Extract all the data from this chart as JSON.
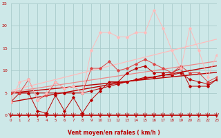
{
  "x": [
    0,
    1,
    2,
    3,
    4,
    5,
    6,
    7,
    8,
    9,
    10,
    11,
    12,
    13,
    14,
    15,
    16,
    17,
    18,
    19,
    20,
    21,
    22,
    23
  ],
  "trend_bottom": [
    3.0,
    3.35,
    3.7,
    4.05,
    4.4,
    4.75,
    5.1,
    5.45,
    5.8,
    6.15,
    6.5,
    6.85,
    7.2,
    7.55,
    7.9,
    8.25,
    8.6,
    8.95,
    9.3,
    9.65,
    10.0,
    10.35,
    10.7,
    11.05
  ],
  "trend_mid1": [
    5.0,
    5.2,
    5.4,
    5.6,
    5.8,
    6.0,
    6.2,
    6.4,
    6.6,
    6.8,
    7.0,
    7.2,
    7.4,
    7.6,
    7.8,
    8.0,
    8.2,
    8.4,
    8.6,
    8.8,
    9.0,
    9.2,
    9.4,
    9.6
  ],
  "trend_mid2": [
    5.2,
    5.5,
    5.8,
    6.1,
    6.4,
    6.7,
    7.0,
    7.3,
    7.6,
    7.9,
    8.2,
    8.5,
    8.8,
    9.1,
    9.4,
    9.7,
    10.0,
    10.3,
    10.6,
    10.9,
    11.2,
    11.5,
    11.8,
    12.1
  ],
  "trend_top": [
    5.5,
    6.0,
    6.5,
    7.0,
    7.5,
    8.0,
    8.5,
    9.0,
    9.5,
    10.0,
    10.5,
    11.0,
    11.5,
    12.0,
    12.5,
    13.0,
    13.5,
    14.0,
    14.5,
    15.0,
    15.5,
    16.0,
    16.5,
    17.0
  ],
  "jagged_dark1": [
    5.0,
    5.0,
    5.0,
    5.0,
    5.0,
    5.0,
    5.0,
    5.0,
    5.0,
    5.5,
    6.0,
    6.5,
    7.0,
    7.5,
    8.0,
    8.5,
    8.5,
    9.0,
    9.0,
    9.5,
    8.0,
    7.5,
    7.0,
    8.0
  ],
  "jagged_dark2": [
    3.0,
    5.0,
    5.0,
    1.0,
    0.5,
    4.5,
    1.0,
    4.0,
    0.5,
    3.5,
    5.5,
    7.5,
    7.5,
    9.5,
    10.5,
    11.0,
    9.5,
    9.5,
    9.5,
    10.5,
    6.5,
    6.5,
    6.5,
    8.0
  ],
  "jagged_medium": [
    5.0,
    5.0,
    8.0,
    3.5,
    4.5,
    7.5,
    6.0,
    6.5,
    5.0,
    10.5,
    10.5,
    12.0,
    10.0,
    10.5,
    11.5,
    12.5,
    11.5,
    10.5,
    9.5,
    11.0,
    9.5,
    9.5,
    7.5,
    8.5
  ],
  "jagged_light": [
    3.0,
    7.5,
    8.0,
    3.5,
    5.0,
    7.5,
    6.0,
    6.5,
    5.0,
    14.5,
    18.5,
    18.5,
    17.5,
    17.5,
    18.5,
    18.5,
    23.5,
    19.5,
    14.5,
    10.5,
    19.5,
    14.5,
    8.5,
    13.5
  ],
  "bg_color": "#cde8e8",
  "grid_color": "#aacccc",
  "color_dark": "#bb0000",
  "color_medium": "#dd4444",
  "color_light": "#ee8888",
  "color_vlight": "#ffbbbb",
  "xlabel": "Vent moyen/en rafales ( km/h )",
  "xlim": [
    0,
    23
  ],
  "ylim": [
    0,
    25
  ],
  "yticks": [
    0,
    5,
    10,
    15,
    20,
    25
  ],
  "xticks": [
    0,
    1,
    2,
    3,
    4,
    5,
    6,
    7,
    8,
    9,
    10,
    11,
    12,
    13,
    14,
    15,
    16,
    17,
    18,
    19,
    20,
    21,
    22,
    23
  ]
}
